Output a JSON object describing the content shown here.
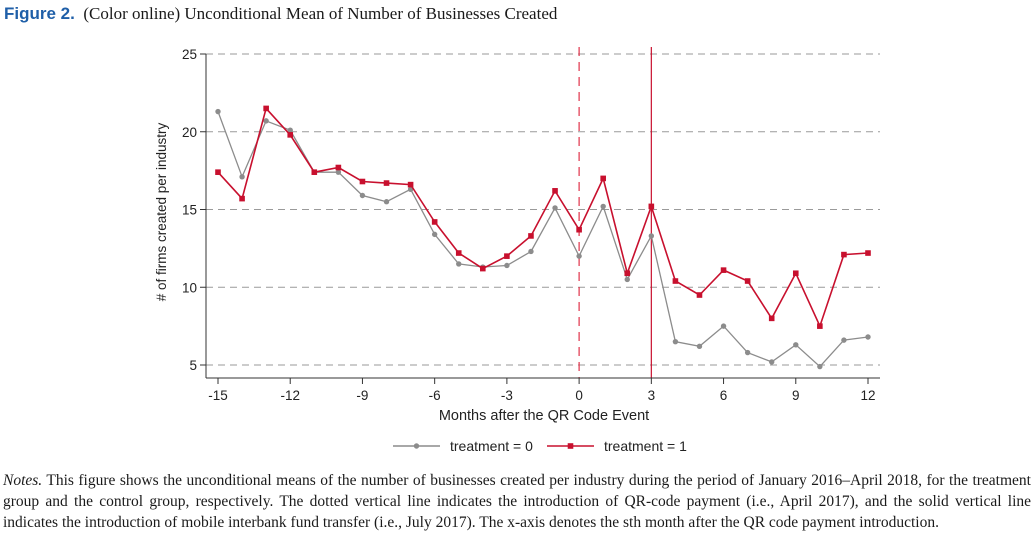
{
  "caption": {
    "label": "Figure 2.",
    "text": "(Color online) Unconditional Mean of Number of Businesses Created"
  },
  "notes": {
    "label": "Notes.",
    "text": "This figure shows the unconditional means of the number of businesses created per industry during the period of January 2016–April 2018, for the treatment group and the control group, respectively. The dotted vertical line indicates the introduction of QR-code payment (i.e., April 2017), and the solid vertical line indicates the introduction of mobile interbank fund transfer (i.e., July 2017). The x-axis denotes the sth month after the QR code payment introduction."
  },
  "chart_data": {
    "type": "line",
    "title": "",
    "xlabel": "Months after the QR Code Event",
    "ylabel": "# of firms created per industry",
    "xlim": [
      -15,
      12
    ],
    "ylim": [
      5,
      25
    ],
    "xticks": [
      -15,
      -12,
      -9,
      -6,
      -3,
      0,
      3,
      6,
      9,
      12
    ],
    "yticks": [
      5,
      10,
      15,
      20,
      25
    ],
    "grid": "horizontal dashed",
    "legend_position": "bottom",
    "vlines": [
      {
        "x": 0,
        "style": "dashed",
        "color": "#e0334a"
      },
      {
        "x": 3,
        "style": "solid",
        "color": "#c8102e"
      }
    ],
    "x": [
      -15,
      -14,
      -13,
      -12,
      -11,
      -10,
      -9,
      -8,
      -7,
      -6,
      -5,
      -4,
      -3,
      -2,
      -1,
      0,
      1,
      2,
      3,
      4,
      5,
      6,
      7,
      8,
      9,
      10,
      11,
      12
    ],
    "series": [
      {
        "name": "treatment = 0",
        "color": "#8c8c8c",
        "marker": "circle",
        "values": [
          21.3,
          17.1,
          20.7,
          20.1,
          17.4,
          17.4,
          15.9,
          15.5,
          16.3,
          13.4,
          11.5,
          11.3,
          11.4,
          12.3,
          15.1,
          12.0,
          15.2,
          10.5,
          13.3,
          6.5,
          6.2,
          7.5,
          5.8,
          5.2,
          6.3,
          4.9,
          6.6,
          6.8
        ]
      },
      {
        "name": "treatment = 1",
        "color": "#c8102e",
        "marker": "square",
        "values": [
          17.4,
          15.7,
          21.5,
          19.8,
          17.4,
          17.7,
          16.8,
          16.7,
          16.6,
          14.2,
          12.2,
          11.2,
          12.0,
          13.3,
          16.2,
          13.7,
          17.0,
          10.9,
          15.2,
          10.4,
          9.5,
          11.1,
          10.4,
          8.0,
          10.9,
          7.5,
          12.1,
          12.2
        ]
      }
    ]
  }
}
